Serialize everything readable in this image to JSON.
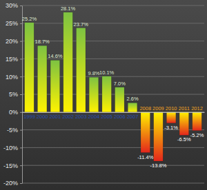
{
  "chart_data": {
    "type": "bar",
    "categories": [
      "1999",
      "2000",
      "2001",
      "2002",
      "2003",
      "2004",
      "2005",
      "2006",
      "2007",
      "2008",
      "2009",
      "2010",
      "2011",
      "2012"
    ],
    "values": [
      25.2,
      18.7,
      14.6,
      28.1,
      23.7,
      9.8,
      10.1,
      7.0,
      2.6,
      -11.4,
      -13.8,
      -3.1,
      -6.5,
      -5.2
    ],
    "value_labels": [
      "25.2%",
      "18.7%",
      "14.6%",
      "28.1%",
      "23.7%",
      "9.8%",
      "10.1%",
      "7.0%",
      "2.6%",
      "-11.4%",
      "-13.8%",
      "-3.1%",
      "-6.5%",
      "-5.2%"
    ],
    "colors": [
      "#7dc242",
      "#7dc242",
      "#7dc242",
      "#7dc242",
      "#7dc242",
      "#7dc242",
      "#7dc242",
      "#7dc242",
      "#7dc242",
      "#e3261c",
      "#e3261c",
      "#e3261c",
      "#e3261c",
      "#e3261c"
    ],
    "ylim": [
      -20,
      30
    ],
    "yticks": [
      {
        "value": -20,
        "label": "-20%"
      },
      {
        "value": -15,
        "label": "-15%"
      },
      {
        "value": -10,
        "label": "-10%"
      },
      {
        "value": -5,
        "label": "-5%"
      },
      {
        "value": 0,
        "label": "0%"
      },
      {
        "value": 5,
        "label": "5%"
      },
      {
        "value": 10,
        "label": "10%"
      },
      {
        "value": 15,
        "label": "15%"
      },
      {
        "value": 20,
        "label": "20%"
      },
      {
        "value": 25,
        "label": "25%"
      },
      {
        "value": 30,
        "label": "30%"
      }
    ],
    "grid": true,
    "data_labels": true
  }
}
